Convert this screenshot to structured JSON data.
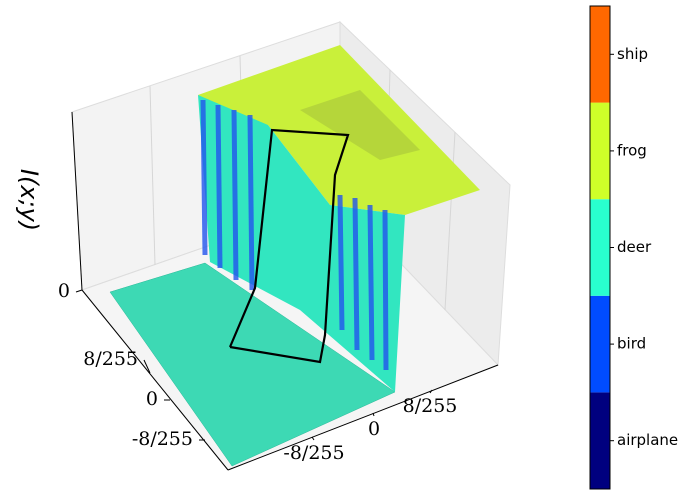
{
  "chart_data": {
    "type": "surface",
    "zlabel": "I(x;y)",
    "zticks": [
      0
    ],
    "xticks": [
      {
        "value": -0.03137,
        "label": "-8/255"
      },
      0,
      {
        "value": 0.03137,
        "label": "8/255"
      }
    ],
    "yticks": [
      {
        "value": 0.03137,
        "label": "8/255"
      },
      0,
      {
        "value": -0.03137,
        "label": "-8/255"
      }
    ],
    "colorbar": {
      "categories": [
        "airplane",
        "bird",
        "deer",
        "frog",
        "ship"
      ],
      "colors": [
        "#00007f",
        "#004cff",
        "#29ffce",
        "#ceff29",
        "#ff6800"
      ]
    }
  }
}
